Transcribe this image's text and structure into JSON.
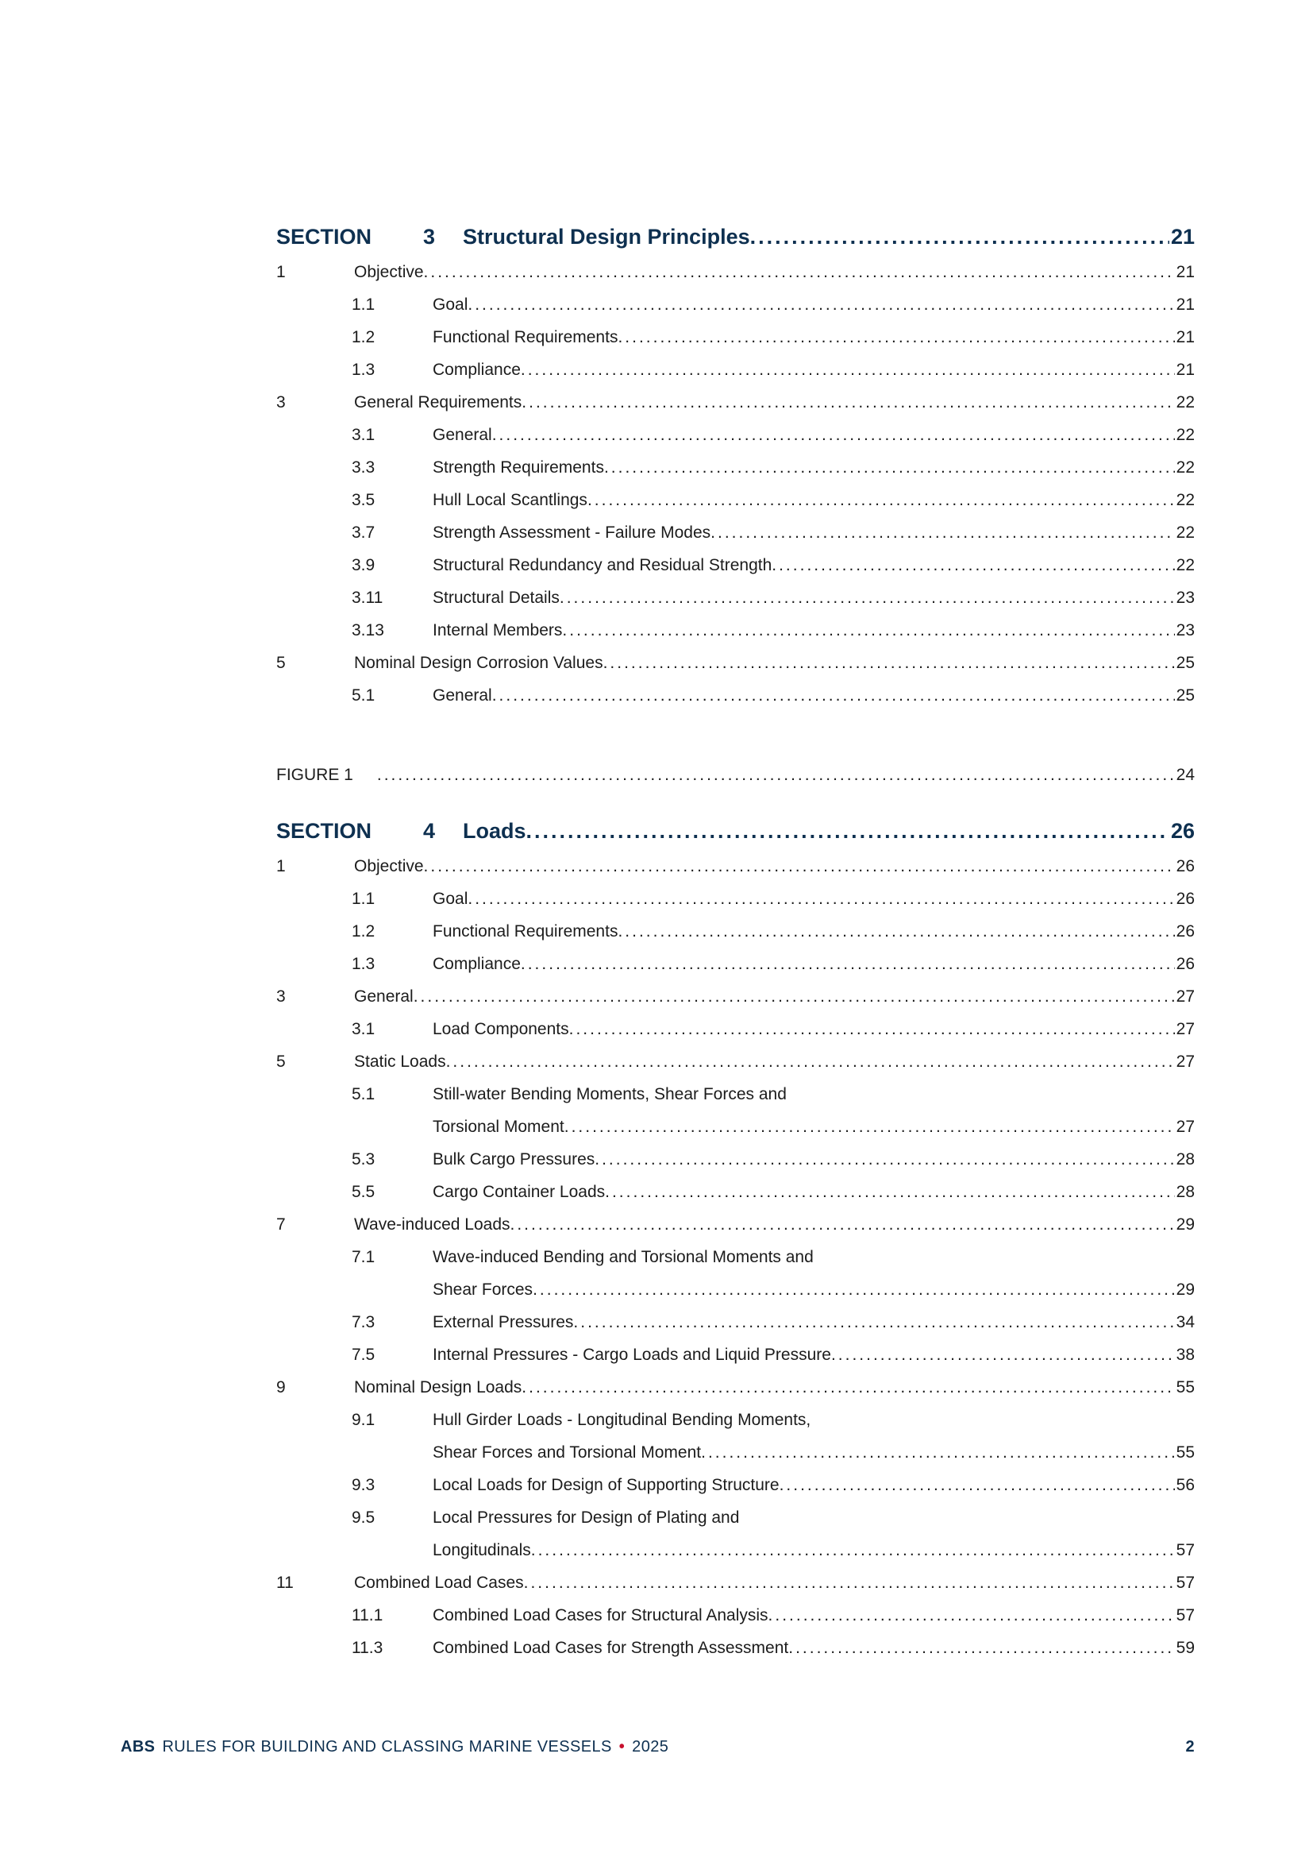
{
  "colors": {
    "navy": "#0e3050",
    "red": "#c8102e",
    "ink": "#1c1c1c"
  },
  "sections": [
    {
      "label": "SECTION",
      "number": "3",
      "title": "Structural Design Principles",
      "page": "21",
      "entries": [
        {
          "level": 1,
          "num": "1",
          "title": "Objective",
          "page": "21"
        },
        {
          "level": 2,
          "num": "1.1",
          "title": "Goal",
          "page": "21"
        },
        {
          "level": 2,
          "num": "1.2",
          "title": "Functional Requirements",
          "page": "21"
        },
        {
          "level": 2,
          "num": "1.3",
          "title": "Compliance",
          "page": "21"
        },
        {
          "level": 1,
          "num": "3",
          "title": "General Requirements",
          "page": "22"
        },
        {
          "level": 2,
          "num": "3.1",
          "title": "General",
          "page": "22"
        },
        {
          "level": 2,
          "num": "3.3",
          "title": "Strength Requirements",
          "page": "22"
        },
        {
          "level": 2,
          "num": "3.5",
          "title": "Hull Local Scantlings",
          "page": "22"
        },
        {
          "level": 2,
          "num": "3.7",
          "title": "Strength Assessment - Failure Modes",
          "page": "22"
        },
        {
          "level": 2,
          "num": "3.9",
          "title": "Structural Redundancy and Residual Strength",
          "page": "22"
        },
        {
          "level": 2,
          "num": "3.11",
          "title": "Structural Details",
          "page": "23"
        },
        {
          "level": 2,
          "num": "3.13",
          "title": "Internal Members",
          "page": "23"
        },
        {
          "level": 1,
          "num": "5",
          "title": "Nominal Design Corrosion Values",
          "page": "25"
        },
        {
          "level": 2,
          "num": "5.1",
          "title": "General",
          "page": "25"
        }
      ],
      "figure": {
        "label": "FIGURE 1",
        "page": "24"
      }
    },
    {
      "label": "SECTION",
      "number": "4",
      "title": "Loads",
      "page": "26",
      "entries": [
        {
          "level": 1,
          "num": "1",
          "title": "Objective",
          "page": "26"
        },
        {
          "level": 2,
          "num": "1.1",
          "title": "Goal",
          "page": "26"
        },
        {
          "level": 2,
          "num": "1.2",
          "title": "Functional Requirements",
          "page": "26"
        },
        {
          "level": 2,
          "num": "1.3",
          "title": "Compliance",
          "page": "26"
        },
        {
          "level": 1,
          "num": "3",
          "title": "General",
          "page": "27"
        },
        {
          "level": 2,
          "num": "3.1",
          "title": "Load Components",
          "page": "27"
        },
        {
          "level": 1,
          "num": "5",
          "title": "Static Loads",
          "page": "27"
        },
        {
          "level": 2,
          "num": "5.1",
          "title_lines": [
            "Still-water Bending Moments, Shear Forces and",
            "Torsional Moment"
          ],
          "page": "27"
        },
        {
          "level": 2,
          "num": "5.3",
          "title": "Bulk Cargo Pressures",
          "page": "28"
        },
        {
          "level": 2,
          "num": "5.5",
          "title": "Cargo Container Loads",
          "page": "28"
        },
        {
          "level": 1,
          "num": "7",
          "title": "Wave-induced Loads",
          "page": "29"
        },
        {
          "level": 2,
          "num": "7.1",
          "title_lines": [
            "Wave-induced Bending and Torsional Moments and",
            "Shear Forces"
          ],
          "page": "29"
        },
        {
          "level": 2,
          "num": "7.3",
          "title": "External Pressures",
          "page": "34"
        },
        {
          "level": 2,
          "num": "7.5",
          "title": "Internal Pressures - Cargo Loads and Liquid Pressure",
          "page": "38"
        },
        {
          "level": 1,
          "num": "9",
          "title": "Nominal Design Loads",
          "page": "55"
        },
        {
          "level": 2,
          "num": "9.1",
          "title_lines": [
            "Hull Girder Loads - Longitudinal Bending Moments,",
            "Shear Forces and Torsional Moment"
          ],
          "page": "55"
        },
        {
          "level": 2,
          "num": "9.3",
          "title": "Local Loads for Design of Supporting Structure",
          "page": "56"
        },
        {
          "level": 2,
          "num": "9.5",
          "title_lines": [
            "Local Pressures for Design of Plating and",
            "Longitudinals"
          ],
          "page": "57"
        },
        {
          "level": 1,
          "num": "11",
          "title": "Combined Load Cases",
          "page": "57"
        },
        {
          "level": 2,
          "num": "11.1",
          "title": "Combined Load Cases for Structural Analysis",
          "page": "57"
        },
        {
          "level": 2,
          "num": "11.3",
          "title": "Combined Load Cases for Strength Assessment",
          "page": "59"
        }
      ]
    }
  ],
  "footer": {
    "brand": "ABS",
    "text": "RULES FOR BUILDING AND CLASSING MARINE VESSELS",
    "separator": "•",
    "year": "2025",
    "page_number": "2"
  }
}
